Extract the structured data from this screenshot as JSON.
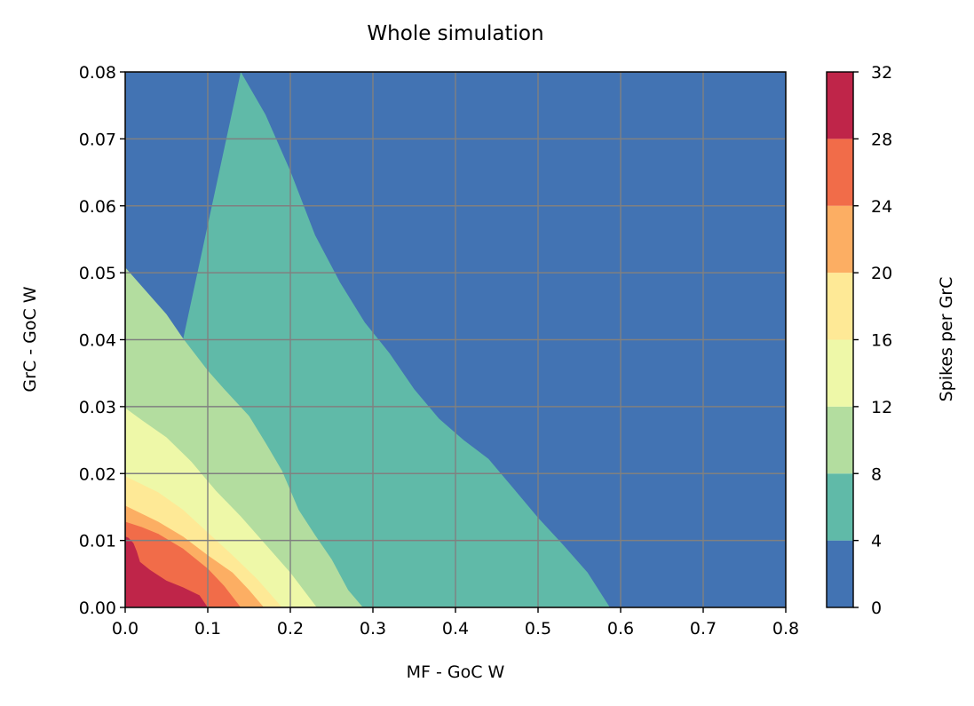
{
  "chart_data": {
    "type": "heatmap",
    "subtype": "filled-contour",
    "title": "Whole simulation",
    "xlabel": "MF - GoC W",
    "ylabel": "GrC - GoC W",
    "xlim": [
      0.0,
      0.8
    ],
    "ylim": [
      0.0,
      0.08
    ],
    "xticks": [
      "0.0",
      "0.1",
      "0.2",
      "0.3",
      "0.4",
      "0.5",
      "0.6",
      "0.7",
      "0.8"
    ],
    "yticks": [
      "0.00",
      "0.01",
      "0.02",
      "0.03",
      "0.04",
      "0.05",
      "0.06",
      "0.07",
      "0.08"
    ],
    "grid": true,
    "grid_color": "#808080",
    "colorbar": {
      "label": "Spikes per GrC",
      "levels": [
        0,
        4,
        8,
        12,
        16,
        20,
        24,
        28,
        32
      ],
      "tick_labels": [
        "0",
        "4",
        "8",
        "12",
        "16",
        "20",
        "24",
        "28",
        "32"
      ],
      "colors": [
        "#4273b3",
        "#60baa8",
        "#b3dd9f",
        "#eef8a8",
        "#fee996",
        "#fcae63",
        "#f16c49",
        "#bf2549"
      ],
      "placement": "right"
    },
    "contour_boundaries": [
      {
        "level": 4,
        "points": [
          [
            0.587,
            0.0
          ],
          [
            0.56,
            0.0052
          ],
          [
            0.53,
            0.0094
          ],
          [
            0.5,
            0.0134
          ],
          [
            0.47,
            0.0178
          ],
          [
            0.44,
            0.0222
          ],
          [
            0.41,
            0.025
          ],
          [
            0.38,
            0.0282
          ],
          [
            0.35,
            0.0326
          ],
          [
            0.32,
            0.038
          ],
          [
            0.29,
            0.0426
          ],
          [
            0.26,
            0.0486
          ],
          [
            0.23,
            0.0556
          ],
          [
            0.2,
            0.0652
          ],
          [
            0.17,
            0.0736
          ],
          [
            0.14,
            0.08
          ]
        ]
      },
      {
        "level": 8,
        "points": [
          [
            0.288,
            0.0
          ],
          [
            0.27,
            0.0026
          ],
          [
            0.25,
            0.0072
          ],
          [
            0.23,
            0.0108
          ],
          [
            0.21,
            0.0146
          ],
          [
            0.19,
            0.0204
          ],
          [
            0.17,
            0.0246
          ],
          [
            0.15,
            0.0286
          ],
          [
            0.12,
            0.0326
          ],
          [
            0.1,
            0.0354
          ],
          [
            0.07,
            0.0402
          ],
          [
            0.05,
            0.0438
          ],
          [
            0.02,
            0.048
          ],
          [
            0.0,
            0.0508
          ]
        ]
      },
      {
        "level": 12,
        "points": [
          [
            0.232,
            0.0
          ],
          [
            0.2,
            0.0052
          ],
          [
            0.17,
            0.0094
          ],
          [
            0.14,
            0.0136
          ],
          [
            0.11,
            0.0174
          ],
          [
            0.08,
            0.0218
          ],
          [
            0.05,
            0.0254
          ],
          [
            0.02,
            0.028
          ],
          [
            0.0,
            0.0298
          ]
        ]
      },
      {
        "level": 16,
        "points": [
          [
            0.19,
            0.0
          ],
          [
            0.16,
            0.0042
          ],
          [
            0.13,
            0.0078
          ],
          [
            0.1,
            0.0112
          ],
          [
            0.07,
            0.0146
          ],
          [
            0.04,
            0.0172
          ],
          [
            0.0,
            0.0196
          ]
        ]
      },
      {
        "level": 20,
        "points": [
          [
            0.168,
            0.0
          ],
          [
            0.15,
            0.0026
          ],
          [
            0.13,
            0.0052
          ],
          [
            0.1,
            0.0078
          ],
          [
            0.07,
            0.0106
          ],
          [
            0.04,
            0.0128
          ],
          [
            0.0,
            0.0152
          ]
        ]
      },
      {
        "level": 24,
        "points": [
          [
            0.14,
            0.0
          ],
          [
            0.12,
            0.0032
          ],
          [
            0.1,
            0.0058
          ],
          [
            0.07,
            0.0088
          ],
          [
            0.04,
            0.011
          ],
          [
            0.02,
            0.012
          ],
          [
            0.0,
            0.0128
          ]
        ]
      },
      {
        "level": 28,
        "points": [
          [
            0.1,
            0.0
          ],
          [
            0.09,
            0.0018
          ],
          [
            0.07,
            0.003
          ],
          [
            0.05,
            0.004
          ],
          [
            0.03,
            0.0056
          ],
          [
            0.018,
            0.0068
          ],
          [
            0.014,
            0.0084
          ],
          [
            0.01,
            0.0096
          ],
          [
            0.004,
            0.0104
          ],
          [
            0.0,
            0.0106
          ]
        ]
      }
    ]
  }
}
